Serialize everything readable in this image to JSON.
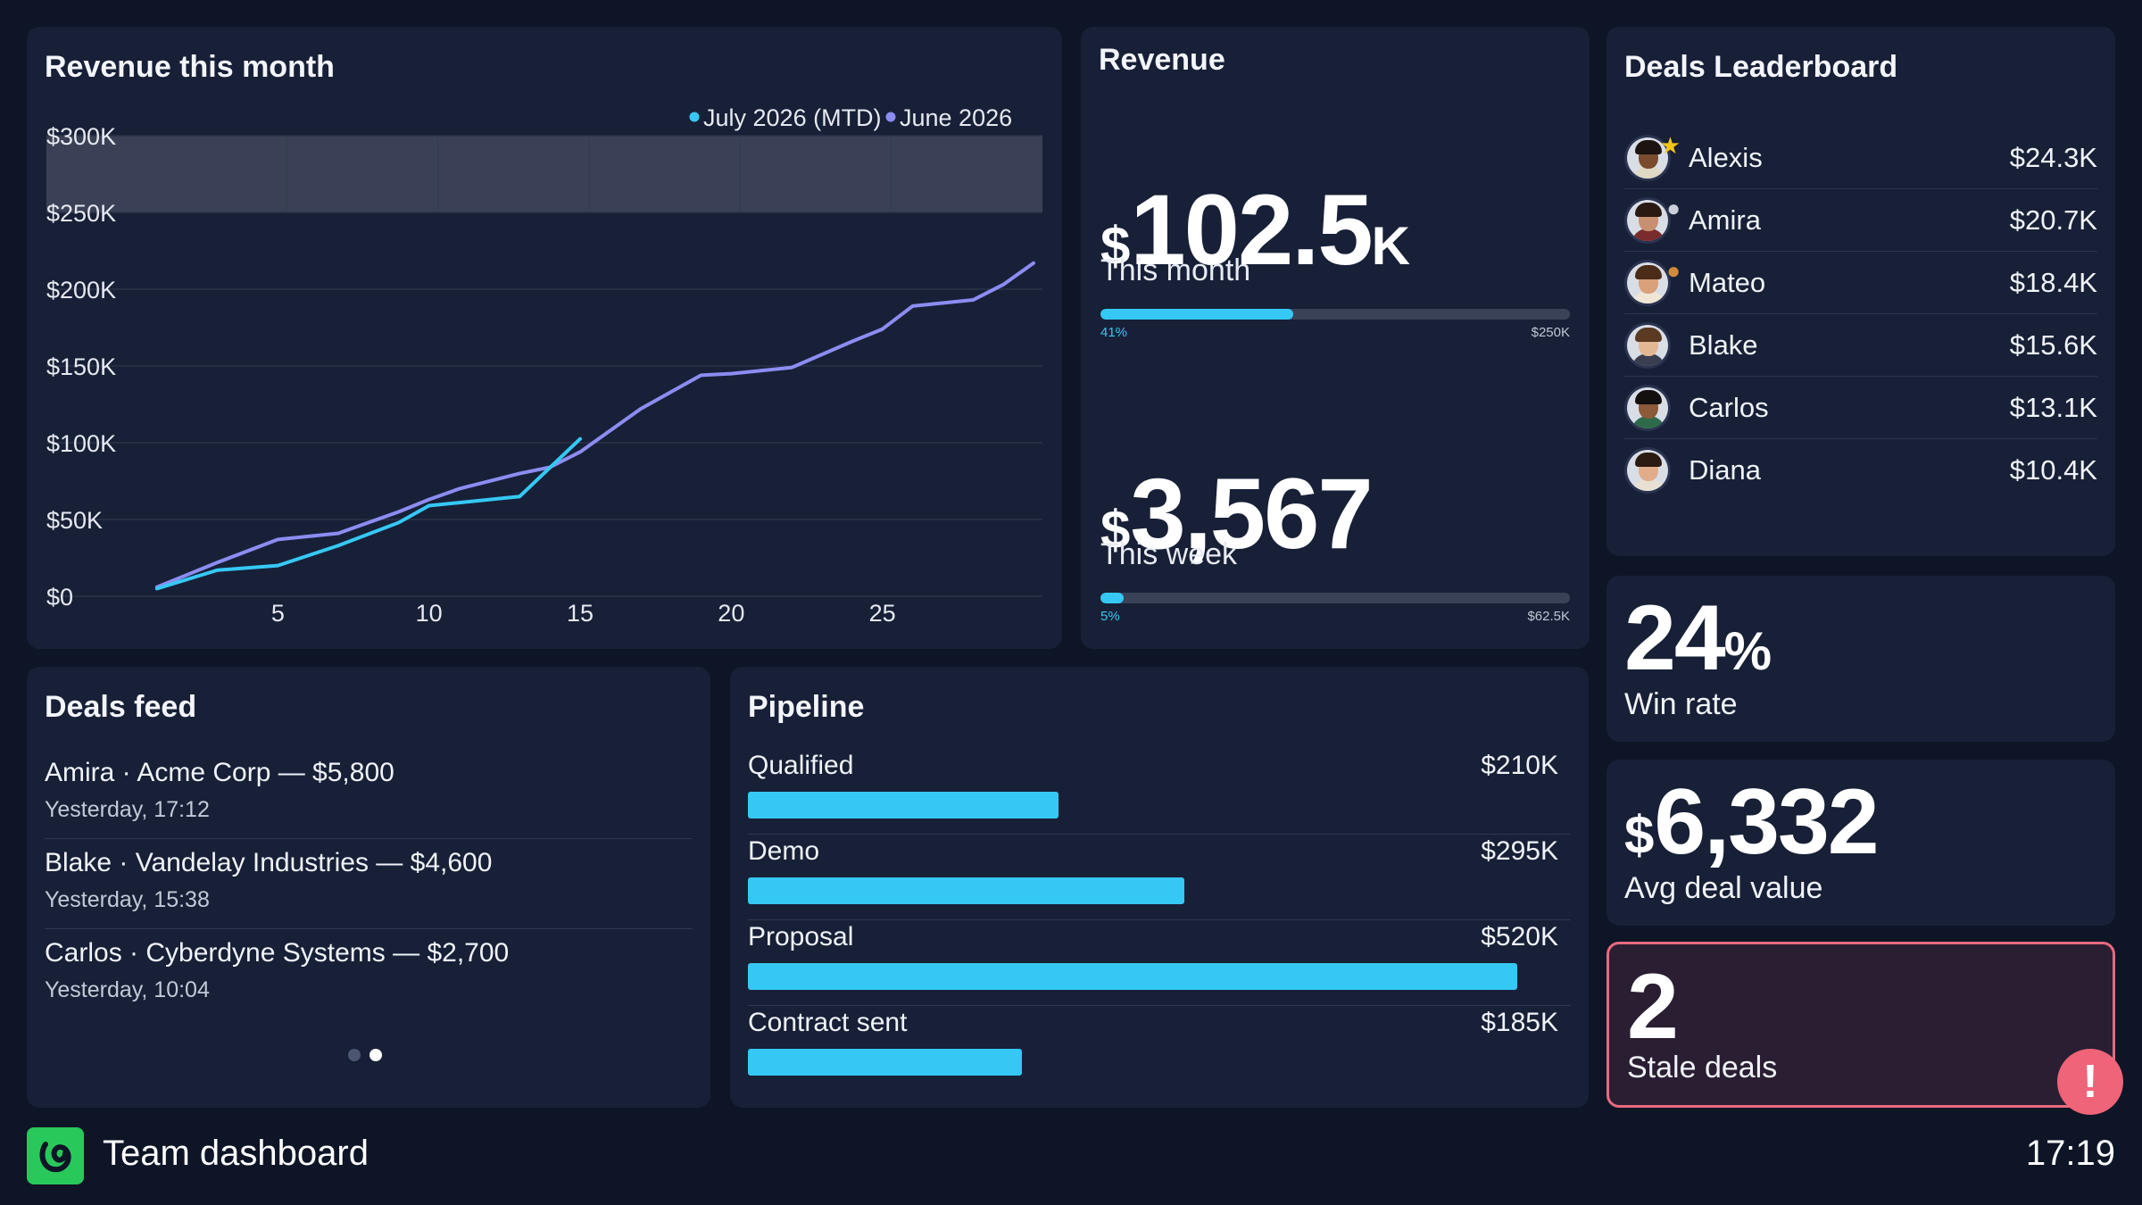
{
  "revenue_chart": {
    "title": "Revenue this month",
    "legend": [
      {
        "label": "July 2026 (MTD)",
        "color": "#36c8f5"
      },
      {
        "label": "June 2026",
        "color": "#8c8cf2"
      }
    ]
  },
  "chart_data": {
    "type": "line",
    "title": "Revenue this month",
    "xlabel": "",
    "ylabel": "",
    "xlim": [
      0,
      30
    ],
    "ylim": [
      0,
      300000
    ],
    "x_ticks": [
      5,
      10,
      15,
      20,
      25
    ],
    "x_tick_labels": [
      "5",
      "10",
      "15",
      "20",
      "25"
    ],
    "y_ticks": [
      0,
      50000,
      100000,
      150000,
      200000,
      250000,
      300000
    ],
    "y_tick_labels": [
      "$0",
      "$50K",
      "$100K",
      "$150K",
      "$200K",
      "$250K",
      "$300K"
    ],
    "target_band": [
      250000,
      300000
    ],
    "legend_position": "top-right",
    "grid": true,
    "series": [
      {
        "name": "July 2026 (MTD)",
        "color": "#36c8f5",
        "x": [
          1,
          3,
          5,
          7,
          9,
          10,
          11,
          13,
          15
        ],
        "y": [
          5000,
          17000,
          20000,
          33000,
          48000,
          59000,
          61000,
          65000,
          102500
        ]
      },
      {
        "name": "June 2026",
        "color": "#8c8cf2",
        "x": [
          1,
          3,
          5,
          7,
          9,
          10,
          11,
          13,
          14,
          15,
          16,
          17,
          18,
          19,
          20,
          22,
          24,
          25,
          26,
          28,
          29,
          30
        ],
        "y": [
          6000,
          22000,
          37000,
          41000,
          55000,
          63000,
          70000,
          80000,
          84000,
          94000,
          108000,
          122000,
          133000,
          144000,
          145000,
          149000,
          166000,
          174000,
          189000,
          193000,
          203000,
          217000
        ]
      }
    ]
  },
  "revenue": {
    "title": "Revenue",
    "month": {
      "symbol": "$",
      "value": "102.5",
      "suffix": "K",
      "label": "This month",
      "progress_fraction": 0.41,
      "progress_label": "41%",
      "target_label": "$250K"
    },
    "week": {
      "symbol": "$",
      "value": "3,567",
      "label": "This week",
      "progress_fraction": 0.05,
      "progress_label": "5%",
      "target_label": "$62.5K"
    }
  },
  "leaderboard": {
    "title": "Deals Leaderboard",
    "rows": [
      {
        "name": "Alexis",
        "value": "$24.3K",
        "badge": "star-gold-icon"
      },
      {
        "name": "Amira",
        "value": "$20.7K",
        "badge": "medal-silver-icon"
      },
      {
        "name": "Mateo",
        "value": "$18.4K",
        "badge": "medal-bronze-icon"
      },
      {
        "name": "Blake",
        "value": "$15.6K",
        "badge": ""
      },
      {
        "name": "Carlos",
        "value": "$13.1K",
        "badge": ""
      },
      {
        "name": "Diana",
        "value": "$10.4K",
        "badge": ""
      }
    ]
  },
  "win_rate": {
    "value": "24",
    "suffix": "%",
    "label": "Win rate"
  },
  "avg_deal": {
    "symbol": "$",
    "value": "6,332",
    "label": "Avg deal value"
  },
  "stale": {
    "value": "2",
    "label": "Stale deals",
    "alert_icon": "exclamation-icon",
    "alert_glyph": "!",
    "accent": "#e86a7f"
  },
  "feed": {
    "title": "Deals feed",
    "items": [
      {
        "line": "Amira · Acme Corp — $5,800",
        "time": "Yesterday, 17:12"
      },
      {
        "line": "Blake · Vandelay Industries — $4,600",
        "time": "Yesterday, 15:38"
      },
      {
        "line": "Carlos · Cyberdyne Systems — $2,700",
        "time": "Yesterday, 10:04"
      }
    ],
    "page_count": 2,
    "active_page": 2
  },
  "pipeline": {
    "title": "Pipeline",
    "max_value": 520,
    "stages": [
      {
        "name": "Qualified",
        "value_label": "$210K",
        "value": 210
      },
      {
        "name": "Demo",
        "value_label": "$295K",
        "value": 295
      },
      {
        "name": "Proposal",
        "value_label": "$520K",
        "value": 520
      },
      {
        "name": "Contract sent",
        "value_label": "$185K",
        "value": 185
      }
    ],
    "bar_color": "#36c8f5"
  },
  "footer": {
    "title": "Team dashboard",
    "clock": "17:19",
    "logo_icon": "brand-logo-icon",
    "logo_color": "#28c95a"
  }
}
